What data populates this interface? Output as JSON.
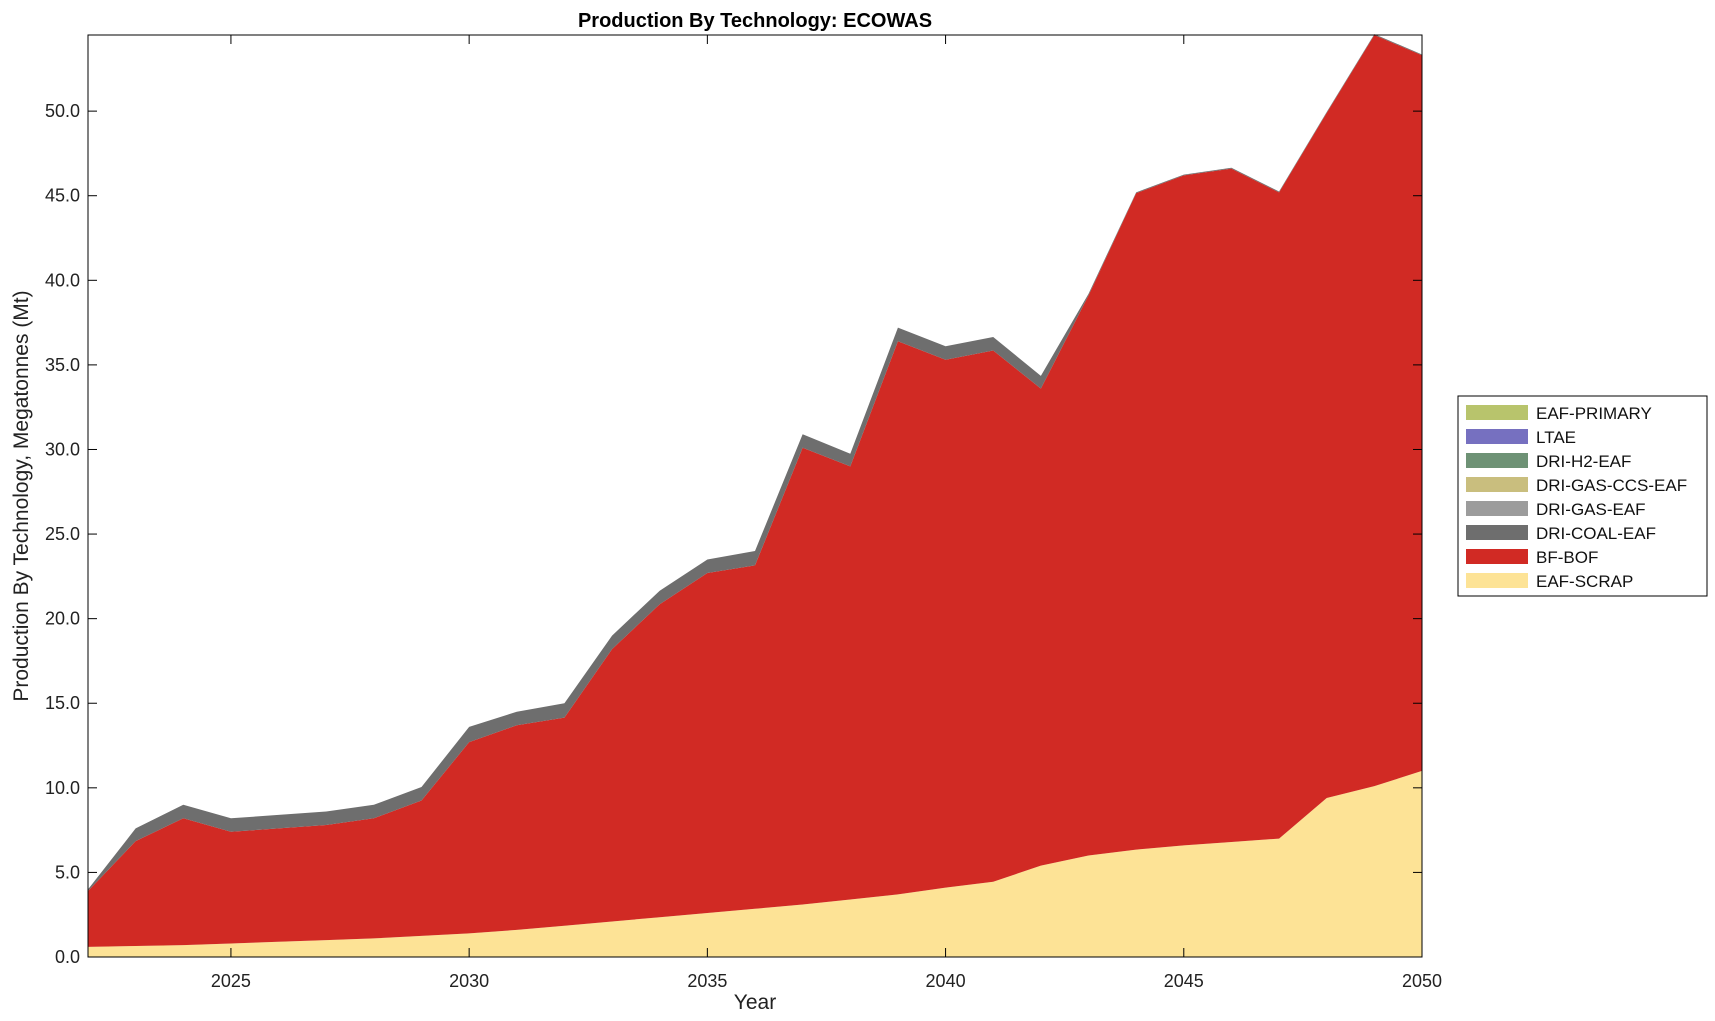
{
  "chart_data": {
    "type": "area",
    "title": "Production By Technology: ECOWAS",
    "xlabel": "Year",
    "ylabel": "Production By Technology, Megatonnes (Mt)",
    "xlim": [
      2022,
      2050
    ],
    "ylim": [
      0,
      54.5
    ],
    "xticks": [
      2025,
      2030,
      2035,
      2040,
      2045,
      2050
    ],
    "yticks": [
      0,
      5,
      10,
      15,
      20,
      25,
      30,
      35,
      40,
      45,
      50
    ],
    "ytick_labels": [
      "0.0",
      "5.0",
      "10.0",
      "15.0",
      "20.0",
      "25.0",
      "30.0",
      "35.0",
      "40.0",
      "45.0",
      "50.0"
    ],
    "stacked": true,
    "grid": false,
    "legend_position": "right",
    "x": [
      2022,
      2023,
      2024,
      2025,
      2026,
      2027,
      2028,
      2029,
      2030,
      2031,
      2032,
      2033,
      2034,
      2035,
      2036,
      2037,
      2038,
      2039,
      2040,
      2041,
      2042,
      2043,
      2044,
      2045,
      2046,
      2047,
      2048,
      2049,
      2050
    ],
    "series": [
      {
        "name": "EAF-SCRAP",
        "color": "#fde396",
        "values": [
          0.6,
          0.65,
          0.7,
          0.8,
          0.9,
          1.0,
          1.1,
          1.25,
          1.4,
          1.6,
          1.85,
          2.1,
          2.35,
          2.6,
          2.85,
          3.1,
          3.4,
          3.7,
          4.1,
          4.45,
          5.4,
          6.0,
          6.35,
          6.6,
          6.8,
          7.0,
          9.4,
          10.1,
          11.0
        ]
      },
      {
        "name": "BF-BOF",
        "color": "#d12a24",
        "values": [
          3.3,
          6.2,
          7.5,
          6.6,
          6.7,
          6.8,
          7.1,
          8.0,
          11.3,
          12.1,
          12.3,
          16.1,
          18.5,
          20.1,
          20.3,
          27.0,
          25.6,
          32.7,
          31.2,
          31.4,
          28.2,
          33.1,
          38.8,
          39.6,
          39.8,
          38.2,
          40.5,
          44.4,
          42.3
        ]
      },
      {
        "name": "DRI-COAL-EAF",
        "color": "#6e6e6e",
        "values": [
          0.1,
          0.75,
          0.8,
          0.8,
          0.8,
          0.8,
          0.8,
          0.8,
          0.9,
          0.8,
          0.85,
          0.8,
          0.8,
          0.8,
          0.85,
          0.8,
          0.75,
          0.8,
          0.8,
          0.8,
          0.75,
          0.1,
          0.05,
          0.05,
          0.05,
          0.05,
          0.05,
          0.05,
          0.05
        ]
      },
      {
        "name": "DRI-GAS-EAF",
        "color": "#9c9c9c",
        "values": [
          0,
          0,
          0,
          0,
          0,
          0,
          0,
          0,
          0,
          0,
          0,
          0,
          0,
          0,
          0,
          0,
          0,
          0,
          0,
          0,
          0,
          0,
          0,
          0,
          0,
          0,
          0,
          0,
          0
        ]
      },
      {
        "name": "DRI-GAS-CCS-EAF",
        "color": "#c9be7e",
        "values": [
          0,
          0,
          0,
          0,
          0,
          0,
          0,
          0,
          0,
          0,
          0,
          0,
          0,
          0,
          0,
          0,
          0,
          0,
          0,
          0,
          0,
          0,
          0,
          0,
          0,
          0,
          0,
          0,
          0
        ]
      },
      {
        "name": "DRI-H2-EAF",
        "color": "#6e9275",
        "values": [
          0,
          0,
          0,
          0,
          0,
          0,
          0,
          0,
          0,
          0,
          0,
          0,
          0,
          0,
          0,
          0,
          0,
          0,
          0,
          0,
          0,
          0,
          0,
          0,
          0,
          0,
          0,
          0,
          0
        ]
      },
      {
        "name": "LTAE",
        "color": "#7670c0",
        "values": [
          0,
          0,
          0,
          0,
          0,
          0,
          0,
          0,
          0,
          0,
          0,
          0,
          0,
          0,
          0,
          0,
          0,
          0,
          0,
          0,
          0,
          0,
          0,
          0,
          0,
          0,
          0,
          0,
          0
        ]
      },
      {
        "name": "EAF-PRIMARY",
        "color": "#b8c46c",
        "values": [
          0,
          0,
          0,
          0,
          0,
          0,
          0,
          0,
          0,
          0,
          0,
          0,
          0,
          0,
          0,
          0,
          0,
          0,
          0,
          0,
          0,
          0,
          0,
          0,
          0,
          0,
          0,
          0,
          0
        ]
      }
    ],
    "legend_order": [
      "EAF-PRIMARY",
      "LTAE",
      "DRI-H2-EAF",
      "DRI-GAS-CCS-EAF",
      "DRI-GAS-EAF",
      "DRI-COAL-EAF",
      "BF-BOF",
      "EAF-SCRAP"
    ]
  }
}
